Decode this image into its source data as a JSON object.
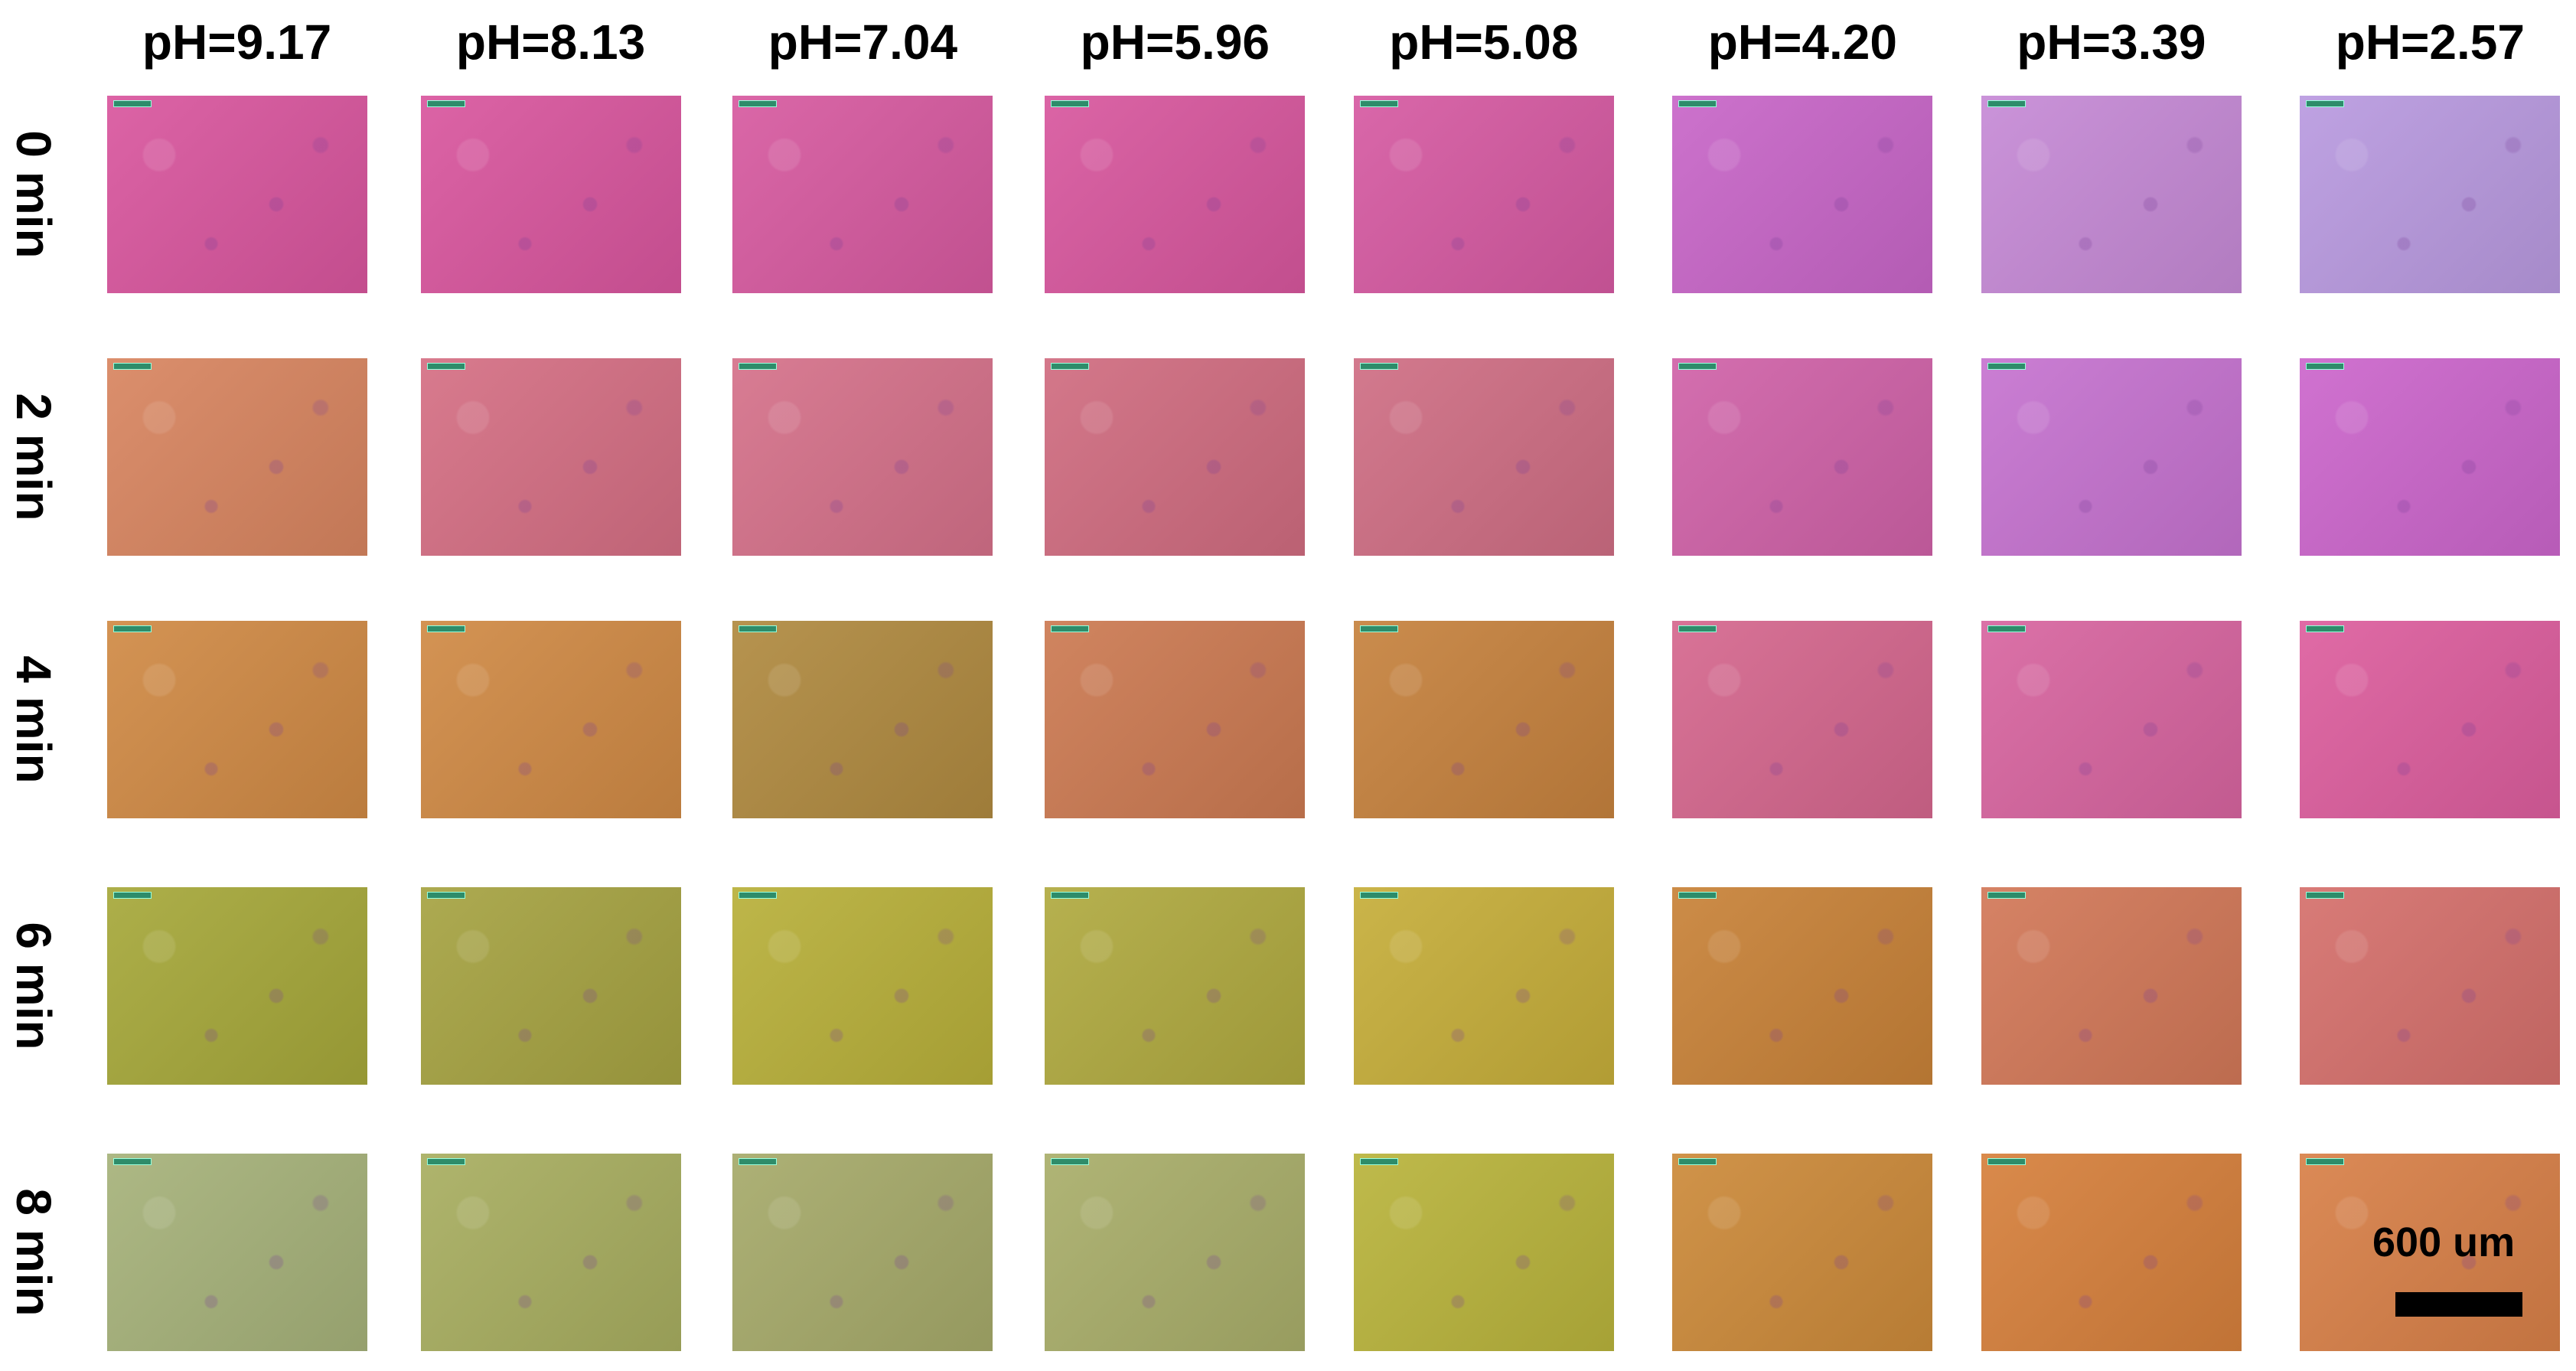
{
  "column_labels": [
    "pH=9.17",
    "pH=8.13",
    "pH=7.04",
    "pH=5.96",
    "pH=5.08",
    "pH=4.20",
    "pH=3.39",
    "pH=2.57"
  ],
  "row_labels": [
    "0 min",
    "2 min",
    "4 min",
    "6 min",
    "8 min"
  ],
  "scale_bar": {
    "label": "600 um"
  }
}
